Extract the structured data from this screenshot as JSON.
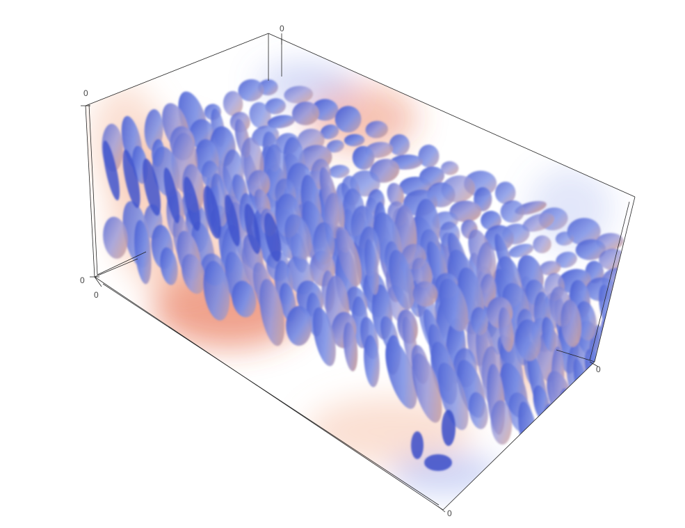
{
  "chart_data": {
    "type": "volume",
    "title": "",
    "colorscale": [
      "#3a4ec8",
      "#6f86e6",
      "#f2f2f2",
      "#f4a582",
      "#e4572e"
    ],
    "axes": {
      "x": {
        "label": "",
        "ticks": [
          "0"
        ]
      },
      "y": {
        "label": "",
        "ticks": [
          "0"
        ]
      },
      "z": {
        "label": "",
        "ticks": [
          "0"
        ]
      }
    },
    "corner_tick_labels": [
      "0",
      "0",
      "0",
      "0",
      "0",
      "0"
    ],
    "grid": false,
    "legend": "none"
  }
}
